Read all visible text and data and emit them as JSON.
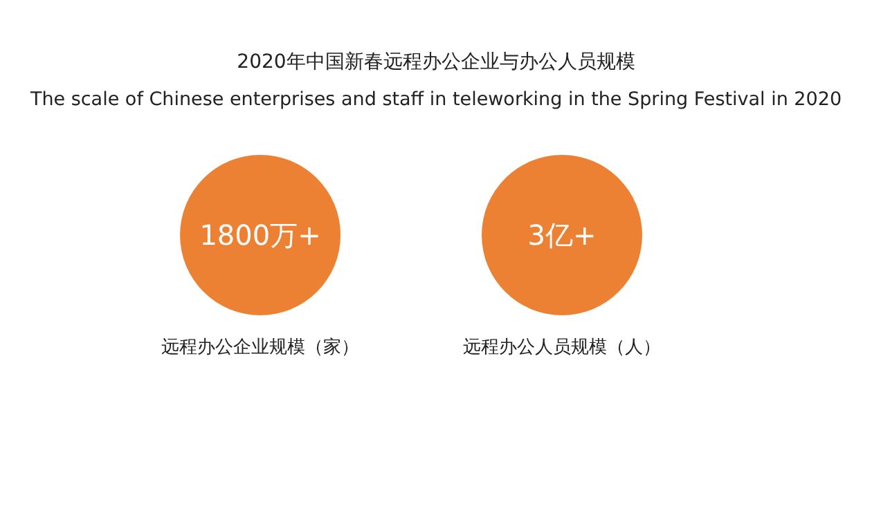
{
  "chart_data": {
    "type": "other",
    "title": "2020年中国新春远程办公企业与办公人员规模",
    "subtitle": "The scale of Chinese enterprises and staff in teleworking in the Spring Festival in 2020",
    "categories": [
      "远程办公企业规模（家）",
      "远程办公人员规模（人）"
    ],
    "values": [
      1800,
      3
    ],
    "value_labels": [
      "1800万+",
      "3亿+"
    ],
    "colors": [
      "#ed8133",
      "#ed8133"
    ]
  }
}
